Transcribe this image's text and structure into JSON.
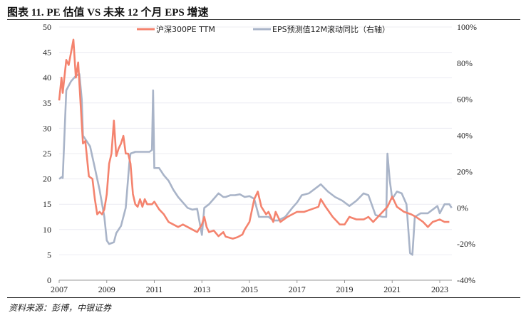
{
  "title": "图表 11. PE 估值 VS 未来 12 个月 EPS 增速",
  "source": "资料来源：彭博，中银证券",
  "chart_data": {
    "type": "line",
    "title": "图表 11. PE 估值 VS 未来 12 个月 EPS 增速",
    "xlabel": "",
    "ylabel": "",
    "y2label": "",
    "xlim": [
      2007,
      2023.5
    ],
    "ylim": [
      0,
      50
    ],
    "y2lim": [
      -40,
      100
    ],
    "x_ticks": [
      "2007",
      "2009",
      "2011",
      "2013",
      "2015",
      "2017",
      "2019",
      "2021",
      "2023"
    ],
    "y_ticks": [
      "0",
      "5",
      "10",
      "15",
      "20",
      "25",
      "30",
      "35",
      "40",
      "45",
      "50"
    ],
    "y2_ticks": [
      "-40%",
      "-20%",
      "0%",
      "20%",
      "40%",
      "60%",
      "80%",
      "100%"
    ],
    "grid": true,
    "legend": "top",
    "series": [
      {
        "name": "沪深300PE TTM",
        "axis": "left",
        "color": "#F4836E",
        "x": [
          2007.0,
          2007.1,
          2007.15,
          2007.3,
          2007.4,
          2007.6,
          2007.7,
          2007.8,
          2007.9,
          2008.0,
          2008.1,
          2008.25,
          2008.4,
          2008.5,
          2008.6,
          2008.7,
          2008.8,
          2008.9,
          2009.0,
          2009.1,
          2009.2,
          2009.3,
          2009.4,
          2009.5,
          2009.6,
          2009.7,
          2009.8,
          2009.9,
          2010.0,
          2010.1,
          2010.2,
          2010.3,
          2010.4,
          2010.5,
          2010.6,
          2010.7,
          2010.9,
          2011.0,
          2011.2,
          2011.4,
          2011.6,
          2011.8,
          2012.0,
          2012.2,
          2012.4,
          2012.6,
          2012.8,
          2013.0,
          2013.1,
          2013.2,
          2013.3,
          2013.5,
          2013.7,
          2013.9,
          2014.0,
          2014.3,
          2014.5,
          2014.7,
          2014.8,
          2015.0,
          2015.2,
          2015.35,
          2015.5,
          2015.7,
          2015.8,
          2016.0,
          2016.1,
          2016.3,
          2016.6,
          2016.8,
          2017.0,
          2017.3,
          2017.6,
          2017.9,
          2018.0,
          2018.2,
          2018.5,
          2018.8,
          2019.0,
          2019.2,
          2019.5,
          2019.8,
          2020.0,
          2020.2,
          2020.5,
          2020.8,
          2021.0,
          2021.2,
          2021.5,
          2021.8,
          2022.0,
          2022.3,
          2022.5,
          2022.7,
          2023.0,
          2023.2,
          2023.4
        ],
        "values": [
          35.5,
          40,
          37,
          43.5,
          42.5,
          47.5,
          40,
          43,
          35,
          27,
          27.5,
          20.5,
          20,
          16,
          13,
          13.5,
          13,
          14,
          17,
          23,
          25,
          31.5,
          24.5,
          26,
          27,
          28.5,
          25,
          25,
          23,
          17,
          15,
          14.5,
          16,
          14.5,
          16,
          15,
          15,
          15.5,
          14,
          13,
          11.5,
          11,
          10.5,
          11,
          10.5,
          10,
          9.5,
          11,
          12.5,
          10.5,
          9.5,
          9.8,
          8.7,
          9.5,
          8.6,
          8.2,
          8.5,
          9,
          10,
          11.5,
          16,
          17.5,
          14.5,
          13,
          13.5,
          11.5,
          13.5,
          11.5,
          12.5,
          13,
          13.5,
          13.5,
          14,
          14.5,
          16,
          14.5,
          12.5,
          11,
          11,
          12.5,
          12,
          12,
          12.5,
          11.5,
          13,
          14.5,
          16.5,
          14.5,
          13.5,
          13,
          12.5,
          11.5,
          10.5,
          11.5,
          12,
          11.5,
          11.5
        ]
      },
      {
        "name": "EPS预测值12M滚动同比（右轴）",
        "axis": "right",
        "color": "#A9B4C8",
        "x": [
          2007.0,
          2007.1,
          2007.15,
          2007.3,
          2007.5,
          2007.7,
          2007.85,
          2007.95,
          2008.0,
          2008.1,
          2008.3,
          2008.5,
          2008.7,
          2008.9,
          2009.0,
          2009.1,
          2009.3,
          2009.4,
          2009.6,
          2009.8,
          2009.95,
          2010.0,
          2010.2,
          2010.5,
          2010.8,
          2010.9,
          2010.95,
          2011.0,
          2011.2,
          2011.4,
          2011.6,
          2011.8,
          2012.0,
          2012.2,
          2012.4,
          2012.6,
          2012.8,
          2013.0,
          2013.1,
          2013.3,
          2013.5,
          2013.7,
          2013.9,
          2014.0,
          2014.2,
          2014.4,
          2014.6,
          2014.8,
          2015.0,
          2015.2,
          2015.4,
          2015.6,
          2015.8,
          2016.0,
          2016.2,
          2016.5,
          2016.8,
          2017.0,
          2017.2,
          2017.5,
          2017.8,
          2018.0,
          2018.3,
          2018.6,
          2018.9,
          2019.2,
          2019.5,
          2019.8,
          2020.0,
          2020.3,
          2020.6,
          2020.75,
          2020.8,
          2020.9,
          2021.0,
          2021.2,
          2021.4,
          2021.6,
          2021.75,
          2021.85,
          2021.95,
          2022.2,
          2022.5,
          2022.7,
          2022.9,
          2023.0,
          2023.2,
          2023.4,
          2023.5
        ],
        "values": [
          16,
          17,
          16.5,
          65,
          70,
          73,
          74,
          60,
          40,
          38,
          34,
          22,
          10,
          -5,
          -18,
          -20,
          -19,
          -14,
          -10,
          0,
          25,
          30,
          31,
          31,
          31,
          32,
          65,
          22,
          22,
          18,
          15,
          10,
          6,
          3,
          0,
          -1,
          -0.5,
          -15,
          0,
          2,
          5,
          8,
          6,
          6,
          7,
          7,
          7.5,
          6,
          6.5,
          5,
          -5,
          -5,
          -5,
          -7,
          -7,
          -5,
          0,
          3,
          7,
          8,
          11,
          13,
          9,
          6,
          4,
          1,
          4,
          8,
          7,
          -4,
          -5,
          -5,
          30,
          15,
          5,
          9,
          8,
          2,
          -25,
          -26,
          -5,
          -3,
          -3,
          -1,
          1,
          -3,
          2,
          2,
          0
        ]
      }
    ]
  }
}
